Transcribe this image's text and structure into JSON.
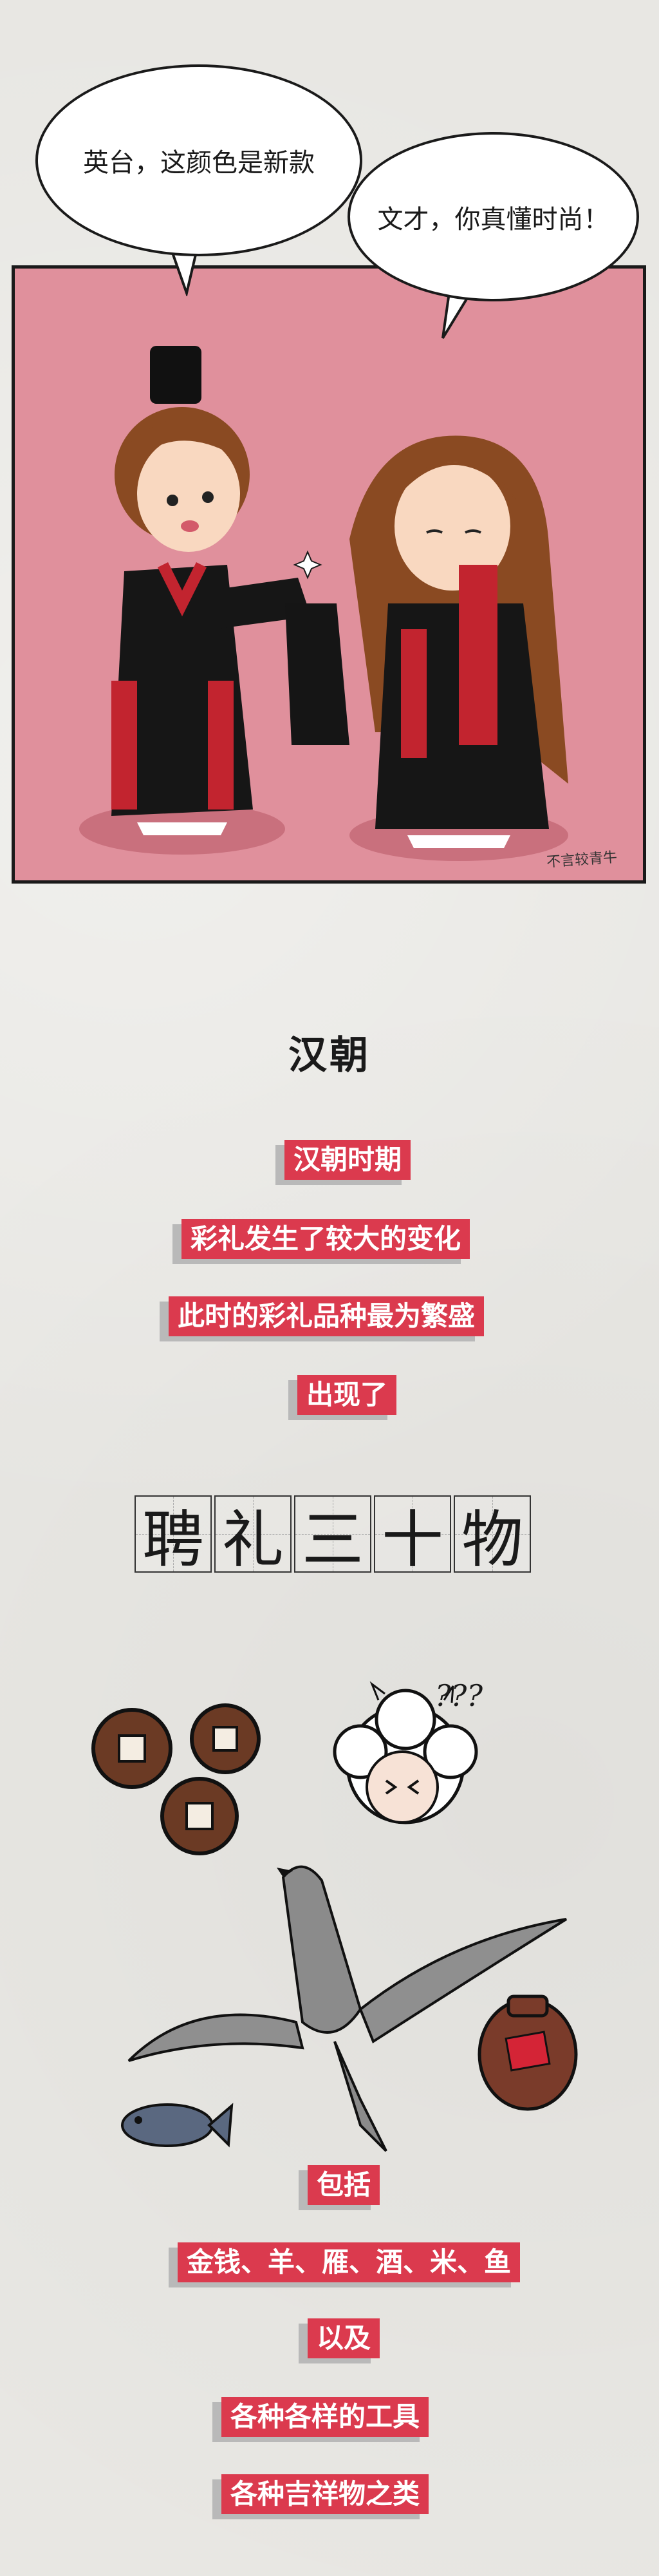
{
  "comic": {
    "bubble_left": "英台，这颜色是新款",
    "bubble_right": "文才，你真懂时尚！",
    "signature": "不言较青牛"
  },
  "section": {
    "title": "汉朝",
    "lines": [
      "汉朝时期",
      "彩礼发生了较大的变化",
      "此时的彩礼品种最为繁盛",
      "出现了"
    ],
    "grid_chars": [
      "聘",
      "礼",
      "三",
      "十",
      "物"
    ]
  },
  "illustration": {
    "question_marks": "???",
    "items": [
      "coins-icon",
      "sheep-icon",
      "goose-icon",
      "wine-jar-icon",
      "fish-icon"
    ]
  },
  "bottom": {
    "lines": [
      "包括",
      "金钱、羊、雁、酒、米、鱼",
      "以及",
      "各种各样的工具",
      "各种吉祥物之类"
    ]
  },
  "colors": {
    "accent": "#db3a4e",
    "panel_bg": "#e0909c",
    "paper": "#e8e7e3"
  }
}
